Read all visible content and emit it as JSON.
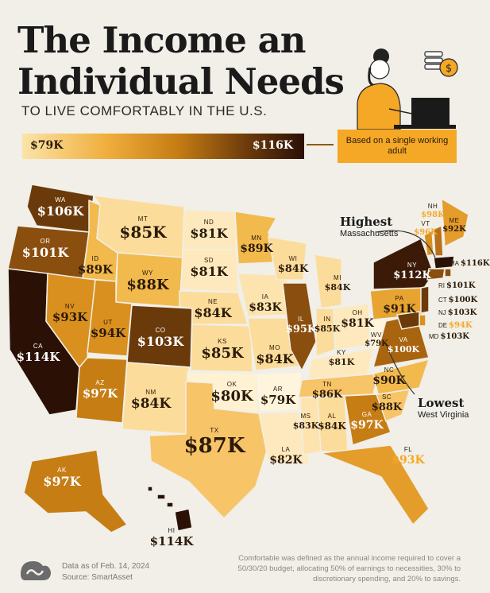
{
  "header": {
    "title_line1": "The Income an",
    "title_line2": "Individual Needs",
    "subtitle": "TO LIVE COMFORTABLY IN THE U.S."
  },
  "legend": {
    "min_label": "$79K",
    "max_label": "$116K",
    "basis_note": "Based on a single working adult",
    "colors": [
      "#fbe4a8",
      "#f0ae3d",
      "#c67d14",
      "#6b3a0b",
      "#2b1006"
    ]
  },
  "callouts": {
    "highest_title": "Highest",
    "highest_state": "Massachusetts",
    "lowest_title": "Lowest",
    "lowest_state": "West Virginia"
  },
  "states": {
    "WA": {
      "abbr": "WA",
      "value": "$106K"
    },
    "OR": {
      "abbr": "OR",
      "value": "$101K"
    },
    "CA": {
      "abbr": "CA",
      "value": "$114K"
    },
    "NV": {
      "abbr": "NV",
      "value": "$93K"
    },
    "ID": {
      "abbr": "ID",
      "value": "$89K"
    },
    "MT": {
      "abbr": "MT",
      "value": "$85K"
    },
    "WY": {
      "abbr": "WY",
      "value": "$88K"
    },
    "UT": {
      "abbr": "UT",
      "value": "$94K"
    },
    "AZ": {
      "abbr": "AZ",
      "value": "$97K"
    },
    "CO": {
      "abbr": "CO",
      "value": "$103K"
    },
    "NM": {
      "abbr": "NM",
      "value": "$84K"
    },
    "ND": {
      "abbr": "ND",
      "value": "$81K"
    },
    "SD": {
      "abbr": "SD",
      "value": "$81K"
    },
    "NE": {
      "abbr": "NE",
      "value": "$84K"
    },
    "KS": {
      "abbr": "KS",
      "value": "$85K"
    },
    "OK": {
      "abbr": "OK",
      "value": "$80K"
    },
    "TX": {
      "abbr": "TX",
      "value": "$87K"
    },
    "MN": {
      "abbr": "MN",
      "value": "$89K"
    },
    "IA": {
      "abbr": "IA",
      "value": "$83K"
    },
    "MO": {
      "abbr": "MO",
      "value": "$84K"
    },
    "AR": {
      "abbr": "AR",
      "value": "$79K"
    },
    "LA": {
      "abbr": "LA",
      "value": "$82K"
    },
    "WI": {
      "abbr": "WI",
      "value": "$84K"
    },
    "IL": {
      "abbr": "IL",
      "value": "$95K"
    },
    "MS": {
      "abbr": "MS",
      "value": "$83K"
    },
    "MI": {
      "abbr": "MI",
      "value": "$84K"
    },
    "IN": {
      "abbr": "IN",
      "value": "$85K"
    },
    "KY": {
      "abbr": "KY",
      "value": "$81K"
    },
    "TN": {
      "abbr": "TN",
      "value": "$86K"
    },
    "AL": {
      "abbr": "AL",
      "value": "$84K"
    },
    "OH": {
      "abbr": "OH",
      "value": "$81K"
    },
    "WV": {
      "abbr": "WV",
      "value": "$79K"
    },
    "GA": {
      "abbr": "GA",
      "value": "$97K"
    },
    "FL": {
      "abbr": "FL",
      "value": "$93K"
    },
    "SC": {
      "abbr": "SC",
      "value": "$88K"
    },
    "NC": {
      "abbr": "NC",
      "value": "$90K"
    },
    "VA": {
      "abbr": "VA",
      "value": "$100K"
    },
    "PA": {
      "abbr": "PA",
      "value": "$91K"
    },
    "NY": {
      "abbr": "NY",
      "value": "$112K"
    },
    "VT": {
      "abbr": "VT",
      "value": "$96K"
    },
    "NH": {
      "abbr": "NH",
      "value": "$98K"
    },
    "ME": {
      "abbr": "ME",
      "value": "$92K"
    },
    "MA": {
      "abbr": "MA",
      "value": "$116K"
    },
    "RI": {
      "abbr": "RI",
      "value": "$101K"
    },
    "CT": {
      "abbr": "CT",
      "value": "$100K"
    },
    "NJ": {
      "abbr": "NJ",
      "value": "$103K"
    },
    "DE": {
      "abbr": "DE",
      "value": "$94K"
    },
    "MD": {
      "abbr": "MD",
      "value": "$103K"
    },
    "AK": {
      "abbr": "AK",
      "value": "$97K"
    },
    "HI": {
      "abbr": "HI",
      "value": "$114K"
    }
  },
  "footer": {
    "date": "Data as of Feb. 14, 2024",
    "source": "Source: SmartAsset",
    "note": "Comfortable was defined as the annual income required to cover a 50/30/20 budget, allocating 50% of earnings to necessities, 30% to discretionary spending, and 20% to savings."
  }
}
